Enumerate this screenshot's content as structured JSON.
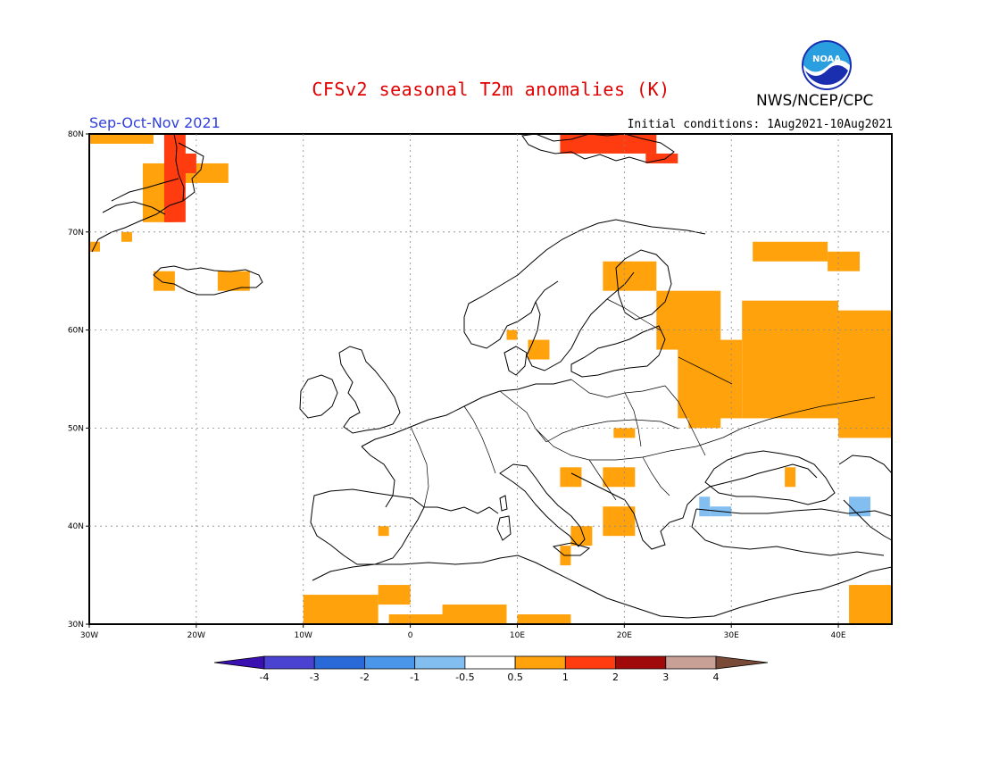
{
  "header": {
    "title": "CFSv2 seasonal T2m anomalies (K)",
    "season": "Sep-Oct-Nov 2021",
    "initial_conditions": "Initial conditions: 1Aug2021-10Aug2021",
    "agency": "NWS/NCEP/CPC",
    "logo_text": "NOAA",
    "logo_icon": "noaa-logo-icon"
  },
  "map": {
    "lon_range": [
      -30,
      45
    ],
    "lat_range": [
      30,
      80
    ],
    "lon_ticks": [
      {
        "lon": -30,
        "label": "30W"
      },
      {
        "lon": -20,
        "label": "20W"
      },
      {
        "lon": -10,
        "label": "10W"
      },
      {
        "lon": 0,
        "label": "0"
      },
      {
        "lon": 10,
        "label": "10E"
      },
      {
        "lon": 20,
        "label": "20E"
      },
      {
        "lon": 30,
        "label": "30E"
      },
      {
        "lon": 40,
        "label": "40E"
      }
    ],
    "lat_ticks": [
      {
        "lat": 30,
        "label": "30N"
      },
      {
        "lat": 40,
        "label": "40N"
      },
      {
        "lat": 50,
        "label": "50N"
      },
      {
        "lat": 60,
        "label": "60N"
      },
      {
        "lat": 70,
        "label": "70N"
      },
      {
        "lat": 80,
        "label": "80N"
      }
    ],
    "gridlines": true,
    "anomaly_regions": [
      {
        "category": "0.5-1",
        "lon": [
          40,
          45
        ],
        "lat": [
          49,
          62
        ]
      },
      {
        "category": "0.5-1",
        "lon": [
          31,
          40
        ],
        "lat": [
          51,
          63
        ]
      },
      {
        "category": "0.5-1",
        "lon": [
          25,
          31
        ],
        "lat": [
          51,
          59
        ]
      },
      {
        "category": "0.5-1",
        "lon": [
          23,
          29
        ],
        "lat": [
          58,
          64
        ]
      },
      {
        "category": "0.5-1",
        "lon": [
          26,
          29
        ],
        "lat": [
          50,
          53
        ]
      },
      {
        "category": "0.5-1",
        "lon": [
          32,
          39
        ],
        "lat": [
          67,
          69
        ]
      },
      {
        "category": "0.5-1",
        "lon": [
          39,
          42
        ],
        "lat": [
          66,
          68
        ]
      },
      {
        "category": "0.5-1",
        "lon": [
          18,
          23
        ],
        "lat": [
          64,
          67
        ]
      },
      {
        "category": "0.5-1",
        "lon": [
          -30,
          -24
        ],
        "lat": [
          79,
          80
        ]
      },
      {
        "category": "0.5-1",
        "lon": [
          -25,
          -22
        ],
        "lat": [
          71,
          77
        ]
      },
      {
        "category": "0.5-1",
        "lon": [
          -22,
          -17
        ],
        "lat": [
          75,
          77
        ]
      },
      {
        "category": "0.5-1",
        "lon": [
          -18,
          -15
        ],
        "lat": [
          64,
          66
        ]
      },
      {
        "category": "0.5-1",
        "lon": [
          -24,
          -22
        ],
        "lat": [
          64,
          66
        ]
      },
      {
        "category": "0.5-1",
        "lon": [
          -30,
          -29
        ],
        "lat": [
          68,
          69
        ]
      },
      {
        "category": "0.5-1",
        "lon": [
          -27,
          -26
        ],
        "lat": [
          69,
          70
        ]
      },
      {
        "category": "0.5-1",
        "lon": [
          -10,
          -3
        ],
        "lat": [
          30,
          33
        ]
      },
      {
        "category": "0.5-1",
        "lon": [
          -3,
          0
        ],
        "lat": [
          32,
          34
        ]
      },
      {
        "category": "0.5-1",
        "lon": [
          -2,
          4
        ],
        "lat": [
          30,
          31
        ]
      },
      {
        "category": "0.5-1",
        "lon": [
          3,
          9
        ],
        "lat": [
          30,
          32
        ]
      },
      {
        "category": "0.5-1",
        "lon": [
          10,
          15
        ],
        "lat": [
          30,
          31
        ]
      },
      {
        "category": "0.5-1",
        "lon": [
          41,
          45
        ],
        "lat": [
          30,
          34
        ]
      },
      {
        "category": "0.5-1",
        "lon": [
          14,
          16
        ],
        "lat": [
          44,
          46
        ]
      },
      {
        "category": "0.5-1",
        "lon": [
          18,
          21
        ],
        "lat": [
          44,
          46
        ]
      },
      {
        "category": "0.5-1",
        "lon": [
          18,
          21
        ],
        "lat": [
          39,
          42
        ]
      },
      {
        "category": "0.5-1",
        "lon": [
          15,
          17
        ],
        "lat": [
          38,
          40
        ]
      },
      {
        "category": "0.5-1",
        "lon": [
          14,
          15
        ],
        "lat": [
          36,
          38
        ]
      },
      {
        "category": "0.5-1",
        "lon": [
          35,
          36
        ],
        "lat": [
          44,
          46
        ]
      },
      {
        "category": "0.5-1",
        "lon": [
          -3,
          -2
        ],
        "lat": [
          39,
          40
        ]
      },
      {
        "category": "0.5-1",
        "lon": [
          11,
          13
        ],
        "lat": [
          57,
          59
        ]
      },
      {
        "category": "0.5-1",
        "lon": [
          9,
          10
        ],
        "lat": [
          59,
          60
        ]
      },
      {
        "category": "0.5-1",
        "lon": [
          19,
          21
        ],
        "lat": [
          49,
          50
        ]
      },
      {
        "category": "1-2",
        "lon": [
          -23,
          -21
        ],
        "lat": [
          71,
          80
        ]
      },
      {
        "category": "1-2",
        "lon": [
          -22,
          -20
        ],
        "lat": [
          76,
          78
        ]
      },
      {
        "category": "1-2",
        "lon": [
          14,
          23
        ],
        "lat": [
          78,
          80
        ]
      },
      {
        "category": "1-2",
        "lon": [
          22,
          25
        ],
        "lat": [
          77,
          78
        ]
      },
      {
        "category": "-1--0.5",
        "lon": [
          27,
          28
        ],
        "lat": [
          41,
          43
        ]
      },
      {
        "category": "-1--0.5",
        "lon": [
          28,
          30
        ],
        "lat": [
          41,
          42
        ]
      },
      {
        "category": "-1--0.5",
        "lon": [
          41,
          43
        ],
        "lat": [
          41,
          43
        ]
      }
    ]
  },
  "colorbar": {
    "labels": [
      "-4",
      "-3",
      "-2",
      "-1",
      "-0.5",
      "0.5",
      "1",
      "2",
      "3",
      "4"
    ],
    "colors": [
      "#3a10b0",
      "#4a42d0",
      "#2a6ad8",
      "#4a96ea",
      "#82bef0",
      "#ffffff",
      "#ffa20c",
      "#ff3c10",
      "#a00a0a",
      "#c8a096",
      "#7a4a38"
    ]
  },
  "colors": {
    "0.5-1": "#ffa20c",
    "1-2": "#ff3c10",
    "-1--0.5": "#82bef0",
    "coastline": "#000000"
  }
}
